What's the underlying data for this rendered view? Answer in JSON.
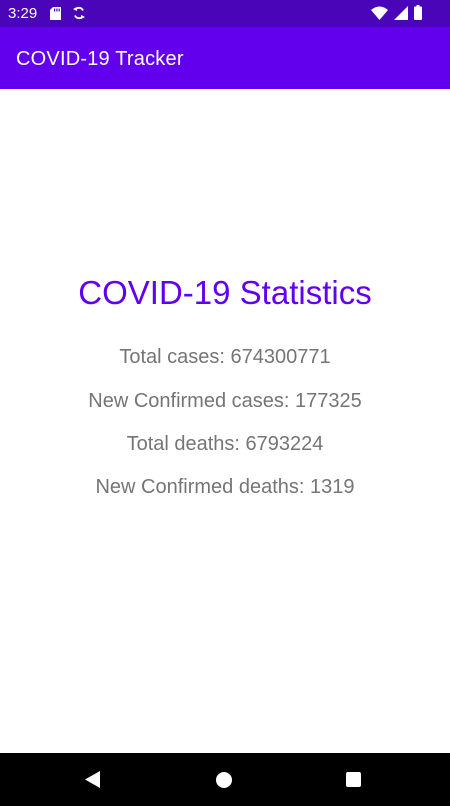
{
  "status_bar": {
    "time": "3:29",
    "left_icons": [
      "sd-card-icon",
      "sync-icon"
    ],
    "right_icons": [
      "wifi-icon",
      "cellular-signal-icon",
      "battery-icon"
    ]
  },
  "app_bar": {
    "title": "COVID-19 Tracker",
    "color": "#6200ee"
  },
  "statistics": {
    "heading": "COVID-19 Statistics",
    "total_cases": "Total cases: 674300771",
    "new_confirmed_cases": "New Confirmed cases: 177325",
    "total_deaths": "Total deaths: 6793224",
    "new_confirmed_deaths": "New Confirmed deaths: 1319"
  },
  "nav_bar": {
    "buttons": [
      "back-icon",
      "home-icon",
      "recents-icon"
    ]
  },
  "colors": {
    "status_bar": "#4a05b8",
    "primary": "#6200ee",
    "stat_text": "#757575"
  }
}
